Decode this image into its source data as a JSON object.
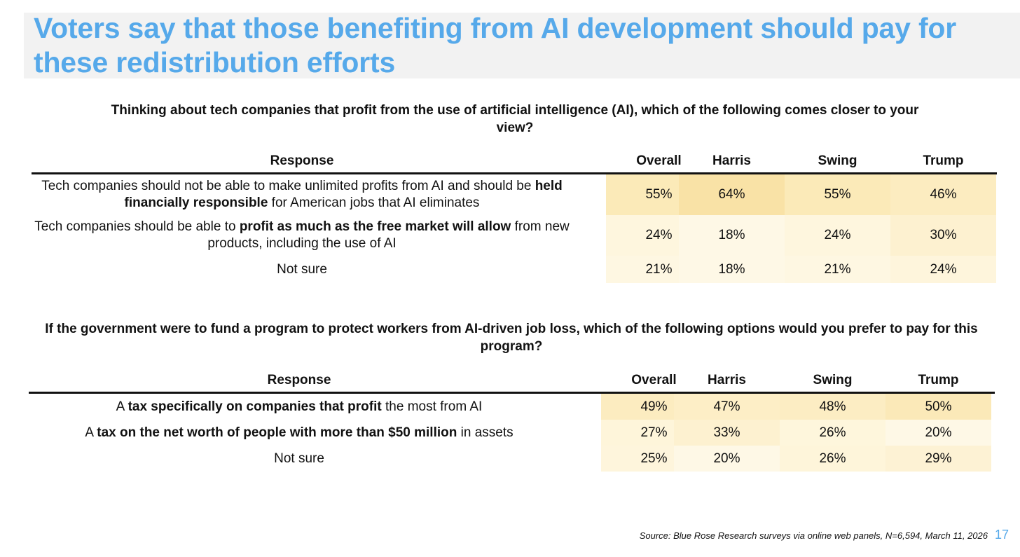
{
  "title": "Voters say that those benefiting from AI development should pay for these redistribution efforts",
  "columns": [
    "Response",
    "Overall",
    "Harris",
    "Swing",
    "Trump"
  ],
  "table1": {
    "question": "Thinking about tech companies that profit from the use of artificial intelligence (AI), which of the following comes closer to your view?",
    "rows": [
      {
        "label": [
          {
            "t": "Tech companies should not be able to make unlimited profits from AI and should be ",
            "b": false
          },
          {
            "t": "held financially responsible",
            "b": true
          },
          {
            "t": " for American jobs that AI eliminates",
            "b": false
          }
        ],
        "values": [
          "55%",
          "64%",
          "55%",
          "46%"
        ],
        "colors": [
          "#fbeab8",
          "#f9e2a6",
          "#fbeab8",
          "#fcecc0"
        ]
      },
      {
        "label": [
          {
            "t": "Tech companies should be able to ",
            "b": false
          },
          {
            "t": "profit as much as the free market will allow",
            "b": true
          },
          {
            "t": " from new products, including the use of AI",
            "b": false
          }
        ],
        "values": [
          "24%",
          "18%",
          "24%",
          "30%"
        ],
        "colors": [
          "#fef6de",
          "#fef8e6",
          "#fef6de",
          "#fdf1d0"
        ]
      },
      {
        "label": [
          {
            "t": "Not sure",
            "b": false
          }
        ],
        "values": [
          "21%",
          "18%",
          "21%",
          "24%"
        ],
        "colors": [
          "#fef7e2",
          "#fef8e6",
          "#fef7e2",
          "#fef5dc"
        ]
      }
    ]
  },
  "table2": {
    "question": "If the government were to fund a program to protect workers from AI-driven job loss, which of the following options would you prefer to pay for this program?",
    "rows": [
      {
        "label": [
          {
            "t": "A ",
            "b": false
          },
          {
            "t": "tax specifically on companies that profit",
            "b": true
          },
          {
            "t": " the most from AI",
            "b": false
          }
        ],
        "values": [
          "49%",
          "47%",
          "48%",
          "50%"
        ],
        "colors": [
          "#fcecc0",
          "#fdeec6",
          "#fcedc3",
          "#fbe9b8"
        ]
      },
      {
        "label": [
          {
            "t": "A ",
            "b": false
          },
          {
            "t": "tax on the net worth of people with more than $50 million",
            "b": true
          },
          {
            "t": " in assets",
            "b": false
          }
        ],
        "values": [
          "27%",
          "33%",
          "26%",
          "20%"
        ],
        "colors": [
          "#fef5da",
          "#fdf1d0",
          "#fef6dc",
          "#fef8e6"
        ]
      },
      {
        "label": [
          {
            "t": "Not sure",
            "b": false
          }
        ],
        "values": [
          "25%",
          "20%",
          "26%",
          "29%"
        ],
        "colors": [
          "#fef5dc",
          "#fef8e6",
          "#fef5da",
          "#fdf2d4"
        ]
      }
    ]
  },
  "source": "Source: Blue Rose Research surveys via online web panels, N=6,594, March 11, 2026",
  "page_number": "17"
}
